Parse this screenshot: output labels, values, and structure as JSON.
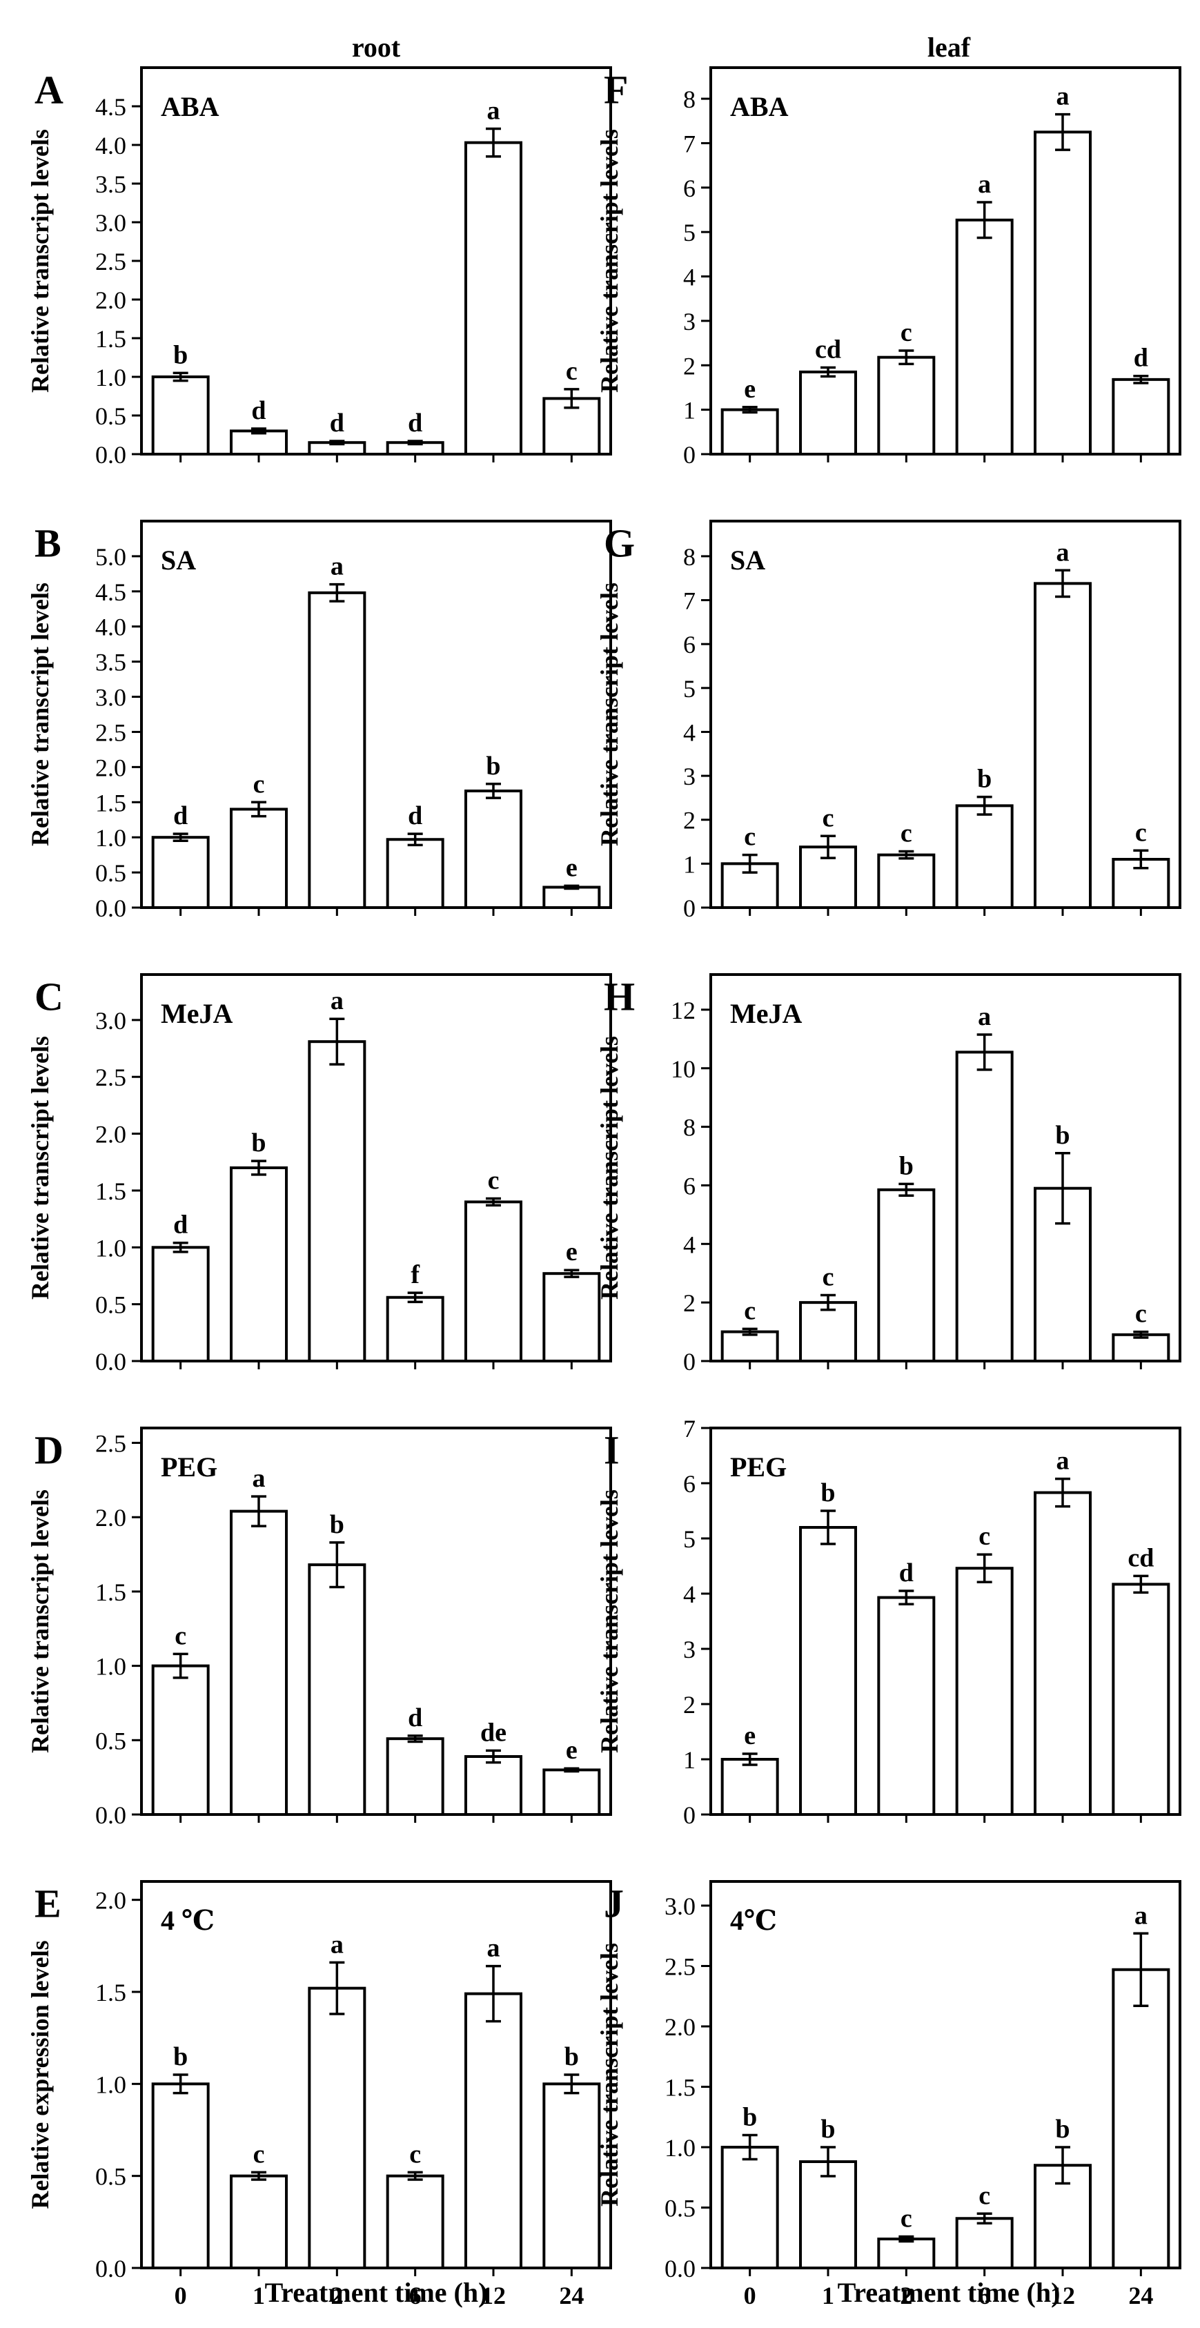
{
  "figure": {
    "column_titles": [
      "root",
      "leaf"
    ],
    "xlabel": "Treatment time (h)"
  },
  "chart_data": [
    {
      "panel": "A",
      "column": 0,
      "row": 0,
      "type": "bar",
      "annotation": "ABA",
      "ylabel": "Relative transcript levels",
      "categories": [
        "0",
        "1",
        "2",
        "6",
        "12",
        "24"
      ],
      "values": [
        1.0,
        0.3,
        0.15,
        0.15,
        4.03,
        0.72
      ],
      "errors": [
        0.05,
        0.03,
        0.02,
        0.02,
        0.18,
        0.12
      ],
      "letters": [
        "b",
        "d",
        "d",
        "d",
        "a",
        "c"
      ],
      "ylim": [
        0,
        5.0
      ],
      "yticks": [
        0,
        0.5,
        1,
        1.5,
        2,
        2.5,
        3,
        3.5,
        4,
        4.5
      ],
      "ytick_labels": [
        "0.0",
        "0.5",
        "1.0",
        "1.5",
        "2.0",
        "2.5",
        "3.0",
        "3.5",
        "4.0",
        "4.5"
      ],
      "show_xticklabels": false
    },
    {
      "panel": "B",
      "column": 0,
      "row": 1,
      "type": "bar",
      "annotation": "SA",
      "ylabel": "Relative transcript levels",
      "categories": [
        "0",
        "1",
        "2",
        "6",
        "12",
        "24"
      ],
      "values": [
        1.0,
        1.4,
        4.48,
        0.97,
        1.66,
        0.29
      ],
      "errors": [
        0.05,
        0.1,
        0.12,
        0.08,
        0.1,
        0.02
      ],
      "letters": [
        "d",
        "c",
        "a",
        "d",
        "b",
        "e"
      ],
      "ylim": [
        0,
        5.5
      ],
      "yticks": [
        0,
        0.5,
        1,
        1.5,
        2,
        2.5,
        3,
        3.5,
        4,
        4.5,
        5
      ],
      "ytick_labels": [
        "0.0",
        "0.5",
        "1.0",
        "1.5",
        "2.0",
        "2.5",
        "3.0",
        "3.5",
        "4.0",
        "4.5",
        "5.0"
      ],
      "show_xticklabels": false
    },
    {
      "panel": "C",
      "column": 0,
      "row": 2,
      "type": "bar",
      "annotation": "MeJA",
      "ylabel": "Relative transcript levels",
      "categories": [
        "0",
        "1",
        "2",
        "6",
        "12",
        "24"
      ],
      "values": [
        1.0,
        1.7,
        2.81,
        0.56,
        1.4,
        0.77
      ],
      "errors": [
        0.04,
        0.06,
        0.2,
        0.04,
        0.03,
        0.03
      ],
      "letters": [
        "d",
        "b",
        "a",
        "f",
        "c",
        "e"
      ],
      "ylim": [
        0,
        3.4
      ],
      "yticks": [
        0,
        0.5,
        1,
        1.5,
        2,
        2.5,
        3
      ],
      "ytick_labels": [
        "0.0",
        "0.5",
        "1.0",
        "1.5",
        "2.0",
        "2.5",
        "3.0"
      ],
      "show_xticklabels": false
    },
    {
      "panel": "D",
      "column": 0,
      "row": 3,
      "type": "bar",
      "annotation": "PEG",
      "ylabel": "Relative transcript levels",
      "categories": [
        "0",
        "1",
        "2",
        "6",
        "12",
        "24"
      ],
      "values": [
        1.0,
        2.04,
        1.68,
        0.51,
        0.39,
        0.3
      ],
      "errors": [
        0.08,
        0.1,
        0.15,
        0.02,
        0.04,
        0.01
      ],
      "letters": [
        "c",
        "a",
        "b",
        "d",
        "de",
        "e"
      ],
      "ylim": [
        0,
        2.6
      ],
      "yticks": [
        0,
        0.5,
        1,
        1.5,
        2,
        2.5
      ],
      "ytick_labels": [
        "0.0",
        "0.5",
        "1.0",
        "1.5",
        "2.0",
        "2.5"
      ],
      "show_xticklabels": false
    },
    {
      "panel": "E",
      "column": 0,
      "row": 4,
      "type": "bar",
      "annotation": "4 ℃",
      "ylabel": "Relative expression levels",
      "categories": [
        "0",
        "1",
        "2",
        "6",
        "12",
        "24"
      ],
      "values": [
        1.0,
        0.5,
        1.52,
        0.5,
        1.49,
        1.0
      ],
      "errors": [
        0.05,
        0.02,
        0.14,
        0.02,
        0.15,
        0.05
      ],
      "letters": [
        "b",
        "c",
        "a",
        "c",
        "a",
        "b"
      ],
      "ylim": [
        0,
        2.1
      ],
      "yticks": [
        0,
        0.5,
        1,
        1.5,
        2
      ],
      "ytick_labels": [
        "0.0",
        "0.5",
        "1.0",
        "1.5",
        "2.0"
      ],
      "show_xticklabels": true
    },
    {
      "panel": "F",
      "column": 1,
      "row": 0,
      "type": "bar",
      "annotation": "ABA",
      "ylabel": "Relative transcript levels",
      "categories": [
        "0",
        "1",
        "2",
        "6",
        "12",
        "24"
      ],
      "values": [
        1.0,
        1.85,
        2.18,
        5.27,
        7.25,
        1.68
      ],
      "errors": [
        0.06,
        0.1,
        0.15,
        0.4,
        0.4,
        0.08
      ],
      "letters": [
        "e",
        "cd",
        "c",
        "a",
        "a",
        "d"
      ],
      "ylim": [
        0,
        8.7
      ],
      "yticks": [
        0,
        1,
        2,
        3,
        4,
        5,
        6,
        7,
        8
      ],
      "ytick_labels": [
        "0",
        "1",
        "2",
        "3",
        "4",
        "5",
        "6",
        "7",
        "8"
      ],
      "show_xticklabels": false
    },
    {
      "panel": "G",
      "column": 1,
      "row": 1,
      "type": "bar",
      "annotation": "SA",
      "ylabel": "Relative transcript levels",
      "categories": [
        "0",
        "1",
        "2",
        "6",
        "12",
        "24"
      ],
      "values": [
        1.0,
        1.38,
        1.2,
        2.32,
        7.38,
        1.1
      ],
      "errors": [
        0.2,
        0.25,
        0.08,
        0.2,
        0.3,
        0.2
      ],
      "letters": [
        "c",
        "c",
        "c",
        "b",
        "a",
        "c"
      ],
      "ylim": [
        0,
        8.8
      ],
      "yticks": [
        0,
        1,
        2,
        3,
        4,
        5,
        6,
        7,
        8
      ],
      "ytick_labels": [
        "0",
        "1",
        "2",
        "3",
        "4",
        "5",
        "6",
        "7",
        "8"
      ],
      "show_xticklabels": false
    },
    {
      "panel": "H",
      "column": 1,
      "row": 2,
      "type": "bar",
      "annotation": "MeJA",
      "ylabel": "Relative transcript levels",
      "categories": [
        "0",
        "1",
        "2",
        "6",
        "12",
        "24"
      ],
      "values": [
        1.0,
        2.0,
        5.85,
        10.55,
        5.9,
        0.9
      ],
      "errors": [
        0.1,
        0.25,
        0.2,
        0.6,
        1.2,
        0.1
      ],
      "letters": [
        "c",
        "c",
        "b",
        "a",
        "b",
        "c"
      ],
      "ylim": [
        0,
        13.2
      ],
      "yticks": [
        0,
        2,
        4,
        6,
        8,
        10,
        12
      ],
      "ytick_labels": [
        "0",
        "2",
        "4",
        "6",
        "8",
        "10",
        "12"
      ],
      "show_xticklabels": false
    },
    {
      "panel": "I",
      "column": 1,
      "row": 3,
      "type": "bar",
      "annotation": "PEG",
      "ylabel": "Relative transcript levels",
      "categories": [
        "0",
        "1",
        "2",
        "6",
        "12",
        "24"
      ],
      "values": [
        1.0,
        5.2,
        3.93,
        4.46,
        5.83,
        4.17
      ],
      "errors": [
        0.1,
        0.3,
        0.12,
        0.25,
        0.25,
        0.15
      ],
      "letters": [
        "e",
        "b",
        "d",
        "c",
        "a",
        "cd"
      ],
      "ylim": [
        0,
        7.0
      ],
      "yticks": [
        0,
        1,
        2,
        3,
        4,
        5,
        6,
        7
      ],
      "ytick_labels": [
        "0",
        "1",
        "2",
        "3",
        "4",
        "5",
        "6",
        "7"
      ],
      "show_xticklabels": false
    },
    {
      "panel": "J",
      "column": 1,
      "row": 4,
      "type": "bar",
      "annotation": "4℃",
      "ylabel": "Relative transcript levels",
      "categories": [
        "0",
        "1",
        "2",
        "6",
        "12",
        "24"
      ],
      "values": [
        1.0,
        0.88,
        0.24,
        0.41,
        0.85,
        2.47
      ],
      "errors": [
        0.1,
        0.12,
        0.02,
        0.04,
        0.15,
        0.3
      ],
      "letters": [
        "b",
        "b",
        "c",
        "c",
        "b",
        "a"
      ],
      "ylim": [
        0,
        3.2
      ],
      "yticks": [
        0,
        0.5,
        1,
        1.5,
        2,
        2.5,
        3
      ],
      "ytick_labels": [
        "0.0",
        "0.5",
        "1.0",
        "1.5",
        "2.0",
        "2.5",
        "3.0"
      ],
      "show_xticklabels": true
    }
  ]
}
